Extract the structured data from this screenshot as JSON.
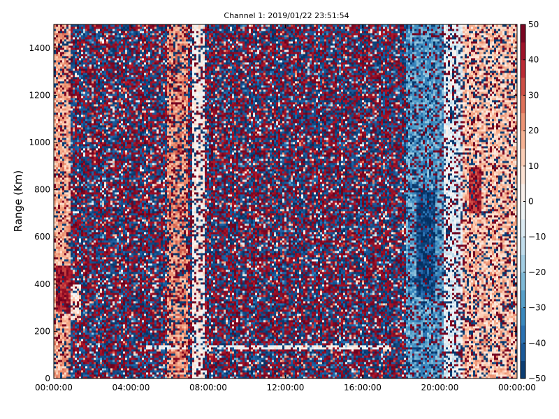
{
  "chart_data": {
    "type": "heatmap",
    "title": "Channel 1: 2019/01/22 23:51:54",
    "xlabel": "",
    "ylabel": "Range (Km)",
    "x_tick_labels": [
      "00:00:00",
      "04:00:00",
      "08:00:00",
      "12:00:00",
      "16:00:00",
      "20:00:00",
      "00:00:00"
    ],
    "x_range_hours": [
      0,
      24
    ],
    "y_ticks": [
      0,
      200,
      400,
      600,
      800,
      1000,
      1200,
      1400
    ],
    "ylim": [
      0,
      1500
    ],
    "colorbar": {
      "colormap": "RdBu_r",
      "range": [
        -50,
        50
      ],
      "ticks": [
        -50,
        -40,
        -30,
        -20,
        -10,
        0,
        10,
        20,
        30,
        40,
        50
      ]
    },
    "grid": false,
    "bands": [
      {
        "hours": [
          0.0,
          0.9
        ],
        "ranges_km": [
          0,
          1500
        ],
        "mean": 18,
        "noise": 0.25
      },
      {
        "hours": [
          0.1,
          0.9
        ],
        "ranges_km": [
          280,
          480
        ],
        "mean": 42,
        "noise": 0.15
      },
      {
        "hours": [
          0.9,
          1.4
        ],
        "ranges_km": [
          250,
          400
        ],
        "mean": 8,
        "noise": 0.2
      },
      {
        "hours": [
          5.9,
          6.9
        ],
        "ranges_km": [
          0,
          1500
        ],
        "mean": 22,
        "noise": 0.35
      },
      {
        "hours": [
          7.2,
          7.8
        ],
        "ranges_km": [
          0,
          1500
        ],
        "mean": 3,
        "noise": 0.3
      },
      {
        "hours": [
          18.2,
          20.2
        ],
        "ranges_km": [
          0,
          1500
        ],
        "mean": -28,
        "noise": 0.3
      },
      {
        "hours": [
          18.8,
          19.8
        ],
        "ranges_km": [
          350,
          800
        ],
        "mean": -45,
        "noise": 0.15
      },
      {
        "hours": [
          20.2,
          21.2
        ],
        "ranges_km": [
          0,
          1500
        ],
        "mean": -5,
        "noise": 0.35
      },
      {
        "hours": [
          21.2,
          24.0
        ],
        "ranges_km": [
          0,
          1500
        ],
        "mean": 14,
        "noise": 0.3
      },
      {
        "hours": [
          21.5,
          22.2
        ],
        "ranges_km": [
          700,
          900
        ],
        "mean": 40,
        "noise": 0.2
      }
    ],
    "horizontal_stripe": {
      "hours": [
        4.8,
        17.5
      ],
      "range_km": 135,
      "value": 0
    }
  }
}
